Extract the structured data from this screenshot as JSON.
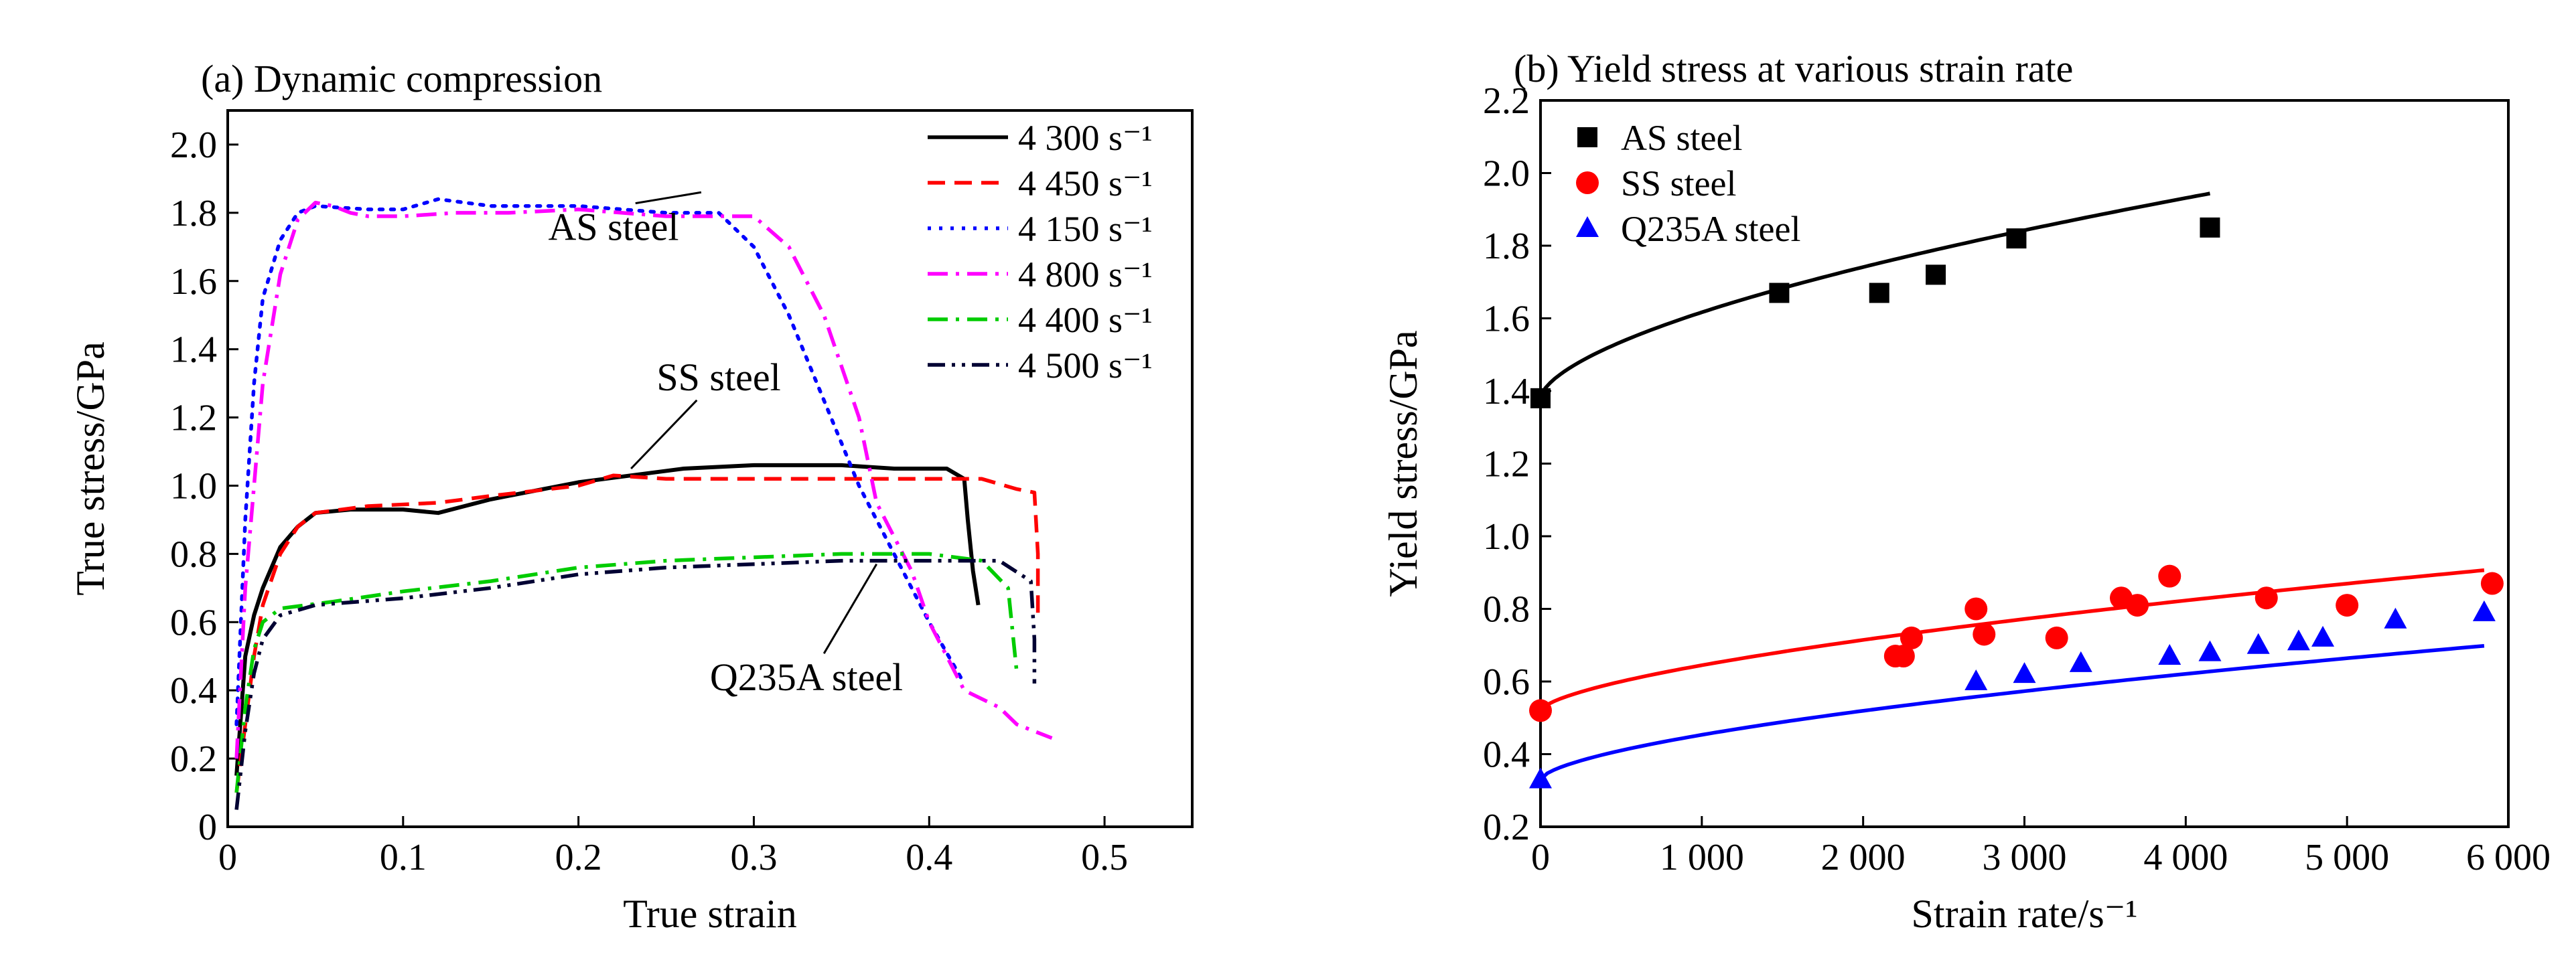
{
  "chart_data": [
    {
      "type": "line",
      "title": "(a) Dynamic compression",
      "xlabel": "True strain",
      "ylabel": "True stress/GPa",
      "xlim": [
        0,
        0.55
      ],
      "ylim": [
        0,
        2.1
      ],
      "xticks": [
        0,
        0.1,
        0.2,
        0.3,
        0.4,
        0.5
      ],
      "xtick_labels": [
        "0",
        "0.1",
        "0.2",
        "0.3",
        "0.4",
        "0.5"
      ],
      "yticks": [
        0,
        0.2,
        0.4,
        0.6,
        0.8,
        1.0,
        1.2,
        1.4,
        1.6,
        1.8,
        2.0
      ],
      "ytick_labels": [
        "0",
        "0.2",
        "0.4",
        "0.6",
        "0.8",
        "1.0",
        "1.2",
        "1.4",
        "1.6",
        "1.8",
        "2.0"
      ],
      "grid": false,
      "legend_position": "top-right",
      "series": [
        {
          "name": "4 300 s⁻¹",
          "color": "#000000",
          "dash": "solid",
          "points": [
            [
              0.005,
              0.15
            ],
            [
              0.01,
              0.5
            ],
            [
              0.015,
              0.62
            ],
            [
              0.02,
              0.7
            ],
            [
              0.03,
              0.82
            ],
            [
              0.04,
              0.88
            ],
            [
              0.05,
              0.92
            ],
            [
              0.07,
              0.93
            ],
            [
              0.1,
              0.93
            ],
            [
              0.12,
              0.92
            ],
            [
              0.15,
              0.96
            ],
            [
              0.18,
              0.99
            ],
            [
              0.2,
              1.01
            ],
            [
              0.23,
              1.03
            ],
            [
              0.26,
              1.05
            ],
            [
              0.3,
              1.06
            ],
            [
              0.35,
              1.06
            ],
            [
              0.38,
              1.05
            ],
            [
              0.41,
              1.05
            ],
            [
              0.42,
              1.02
            ],
            [
              0.422,
              0.9
            ],
            [
              0.425,
              0.75
            ],
            [
              0.428,
              0.65
            ]
          ]
        },
        {
          "name": "4 450 s⁻¹",
          "color": "#ff0000",
          "dash": "dashed",
          "points": [
            [
              0.005,
              0.1
            ],
            [
              0.01,
              0.3
            ],
            [
              0.015,
              0.5
            ],
            [
              0.02,
              0.65
            ],
            [
              0.03,
              0.8
            ],
            [
              0.04,
              0.88
            ],
            [
              0.05,
              0.92
            ],
            [
              0.08,
              0.94
            ],
            [
              0.12,
              0.95
            ],
            [
              0.15,
              0.97
            ],
            [
              0.2,
              1.0
            ],
            [
              0.22,
              1.03
            ],
            [
              0.25,
              1.02
            ],
            [
              0.3,
              1.02
            ],
            [
              0.35,
              1.02
            ],
            [
              0.4,
              1.02
            ],
            [
              0.43,
              1.02
            ],
            [
              0.45,
              0.99
            ],
            [
              0.46,
              0.98
            ],
            [
              0.462,
              0.8
            ],
            [
              0.462,
              0.62
            ]
          ]
        },
        {
          "name": "4 150 s⁻¹",
          "color": "#0000ff",
          "dash": "dotted",
          "points": [
            [
              0.005,
              0.3
            ],
            [
              0.01,
              0.9
            ],
            [
              0.015,
              1.3
            ],
            [
              0.02,
              1.55
            ],
            [
              0.03,
              1.72
            ],
            [
              0.04,
              1.8
            ],
            [
              0.05,
              1.82
            ],
            [
              0.08,
              1.81
            ],
            [
              0.1,
              1.81
            ],
            [
              0.12,
              1.84
            ],
            [
              0.15,
              1.82
            ],
            [
              0.2,
              1.82
            ],
            [
              0.25,
              1.8
            ],
            [
              0.28,
              1.8
            ],
            [
              0.3,
              1.7
            ],
            [
              0.32,
              1.5
            ],
            [
              0.34,
              1.25
            ],
            [
              0.36,
              1.0
            ],
            [
              0.38,
              0.8
            ],
            [
              0.4,
              0.6
            ],
            [
              0.42,
              0.42
            ]
          ]
        },
        {
          "name": "4 800 s⁻¹",
          "color": "#ff00ff",
          "dash": "dashdot",
          "points": [
            [
              0.005,
              0.2
            ],
            [
              0.01,
              0.7
            ],
            [
              0.02,
              1.3
            ],
            [
              0.03,
              1.62
            ],
            [
              0.04,
              1.78
            ],
            [
              0.05,
              1.83
            ],
            [
              0.06,
              1.82
            ],
            [
              0.07,
              1.8
            ],
            [
              0.08,
              1.79
            ],
            [
              0.1,
              1.79
            ],
            [
              0.13,
              1.8
            ],
            [
              0.16,
              1.8
            ],
            [
              0.2,
              1.81
            ],
            [
              0.25,
              1.79
            ],
            [
              0.3,
              1.79
            ],
            [
              0.32,
              1.7
            ],
            [
              0.34,
              1.5
            ],
            [
              0.36,
              1.2
            ],
            [
              0.37,
              0.95
            ],
            [
              0.39,
              0.75
            ],
            [
              0.4,
              0.6
            ],
            [
              0.41,
              0.5
            ],
            [
              0.42,
              0.4
            ],
            [
              0.44,
              0.35
            ],
            [
              0.45,
              0.3
            ],
            [
              0.47,
              0.26
            ]
          ]
        },
        {
          "name": "4 400 s⁻¹",
          "color": "#00cc00",
          "dash": "dashdot",
          "points": [
            [
              0.005,
              0.1
            ],
            [
              0.01,
              0.35
            ],
            [
              0.015,
              0.52
            ],
            [
              0.02,
              0.6
            ],
            [
              0.03,
              0.64
            ],
            [
              0.06,
              0.66
            ],
            [
              0.1,
              0.69
            ],
            [
              0.15,
              0.72
            ],
            [
              0.2,
              0.76
            ],
            [
              0.25,
              0.78
            ],
            [
              0.3,
              0.79
            ],
            [
              0.35,
              0.8
            ],
            [
              0.4,
              0.8
            ],
            [
              0.43,
              0.78
            ],
            [
              0.445,
              0.7
            ],
            [
              0.45,
              0.45
            ]
          ]
        },
        {
          "name": "4 500 s⁻¹",
          "color": "#000033",
          "dash": "dashdotdot",
          "points": [
            [
              0.005,
              0.05
            ],
            [
              0.01,
              0.28
            ],
            [
              0.015,
              0.45
            ],
            [
              0.02,
              0.55
            ],
            [
              0.03,
              0.62
            ],
            [
              0.05,
              0.65
            ],
            [
              0.1,
              0.67
            ],
            [
              0.15,
              0.7
            ],
            [
              0.2,
              0.74
            ],
            [
              0.25,
              0.76
            ],
            [
              0.3,
              0.77
            ],
            [
              0.35,
              0.78
            ],
            [
              0.4,
              0.78
            ],
            [
              0.44,
              0.78
            ],
            [
              0.458,
              0.72
            ],
            [
              0.46,
              0.55
            ],
            [
              0.46,
              0.42
            ]
          ]
        }
      ],
      "annotations": [
        {
          "text": "AS steel",
          "at": [
            0.22,
            1.72
          ],
          "arrow_to": [
            0.27,
            1.86
          ]
        },
        {
          "text": "SS steel",
          "at": [
            0.28,
            1.28
          ],
          "arrow_to": [
            0.23,
            1.05
          ]
        },
        {
          "text": "Q235A steel",
          "at": [
            0.33,
            0.4
          ],
          "arrow_to": [
            0.37,
            0.77
          ]
        }
      ]
    },
    {
      "type": "scatter",
      "title": "(b) Yield stress at various strain rate",
      "xlabel": "Strain rate/s⁻¹",
      "ylabel": "Yield stress/GPa",
      "xlim": [
        0,
        6000
      ],
      "ylim": [
        0.2,
        2.2
      ],
      "xticks": [
        0,
        1000,
        2000,
        3000,
        4000,
        5000,
        6000
      ],
      "xtick_labels": [
        "0",
        "1 000",
        "2 000",
        "3 000",
        "4 000",
        "5 000",
        "6 000"
      ],
      "yticks": [
        0.2,
        0.4,
        0.6,
        0.8,
        1.0,
        1.2,
        1.4,
        1.6,
        1.8,
        2.0,
        2.2
      ],
      "ytick_labels": [
        "0.2",
        "0.4",
        "0.6",
        "0.8",
        "1.0",
        "1.2",
        "1.4",
        "1.6",
        "1.8",
        "2.0",
        "2.2"
      ],
      "grid": false,
      "legend_position": "top-left",
      "series": [
        {
          "name": "AS steel",
          "color": "#000000",
          "marker": "square",
          "points": [
            [
              0,
              1.38
            ],
            [
              1480,
              1.67
            ],
            [
              2100,
              1.67
            ],
            [
              2450,
              1.72
            ],
            [
              2950,
              1.82
            ],
            [
              4150,
              1.85
            ]
          ],
          "fit": {
            "a": 1.38,
            "b": 0.0035,
            "n": 0.61,
            "xmax": 4150
          }
        },
        {
          "name": "SS steel",
          "color": "#ff0000",
          "marker": "circle",
          "points": [
            [
              0,
              0.52
            ],
            [
              2200,
              0.67
            ],
            [
              2250,
              0.67
            ],
            [
              2300,
              0.72
            ],
            [
              2700,
              0.8
            ],
            [
              2750,
              0.73
            ],
            [
              3200,
              0.72
            ],
            [
              3600,
              0.83
            ],
            [
              3700,
              0.81
            ],
            [
              3900,
              0.89
            ],
            [
              4500,
              0.83
            ],
            [
              5000,
              0.81
            ],
            [
              5900,
              0.87
            ]
          ],
          "fit": {
            "a": 0.52,
            "b": 0.0015,
            "n": 0.64,
            "xmax": 5850
          }
        },
        {
          "name": "Q235A steel",
          "color": "#0000ff",
          "marker": "triangle",
          "points": [
            [
              0,
              0.33
            ],
            [
              2700,
              0.6
            ],
            [
              3000,
              0.62
            ],
            [
              3350,
              0.65
            ],
            [
              3900,
              0.67
            ],
            [
              4150,
              0.68
            ],
            [
              4450,
              0.7
            ],
            [
              4700,
              0.71
            ],
            [
              4850,
              0.72
            ],
            [
              5300,
              0.77
            ],
            [
              5850,
              0.79
            ]
          ],
          "fit": {
            "a": 0.33,
            "b": 0.0017,
            "n": 0.62,
            "xmax": 5850
          }
        }
      ]
    }
  ]
}
